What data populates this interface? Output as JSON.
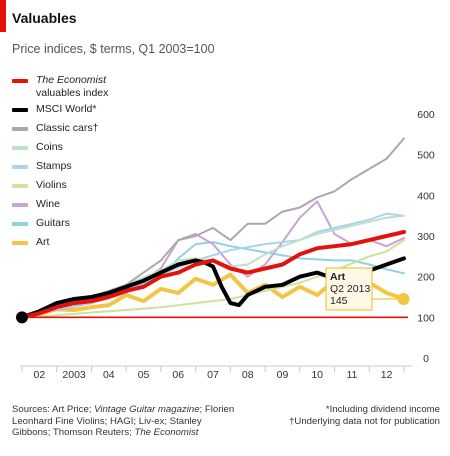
{
  "colors": {
    "accent": "#e3120b",
    "axis": "#c8c8c8",
    "baseline": "#e3120b",
    "annotation_fill": "#fdf9e6",
    "annotation_border": "#f4c542"
  },
  "header": {
    "title": "Valuables",
    "subtitle": "Price indices, $ terms, Q1 2003=100"
  },
  "footer": {
    "sources_prefix": "Sources: Art Price; ",
    "sources_italic": "Vintage Guitar magazine",
    "sources_mid": "; Florien Leonhard Fine Violins; HAGI; Liv-ex; Stanley Gibbons; Thomson Reuters; ",
    "sources_italic2": "The Economist",
    "footnote1": "*Including dividend income",
    "footnote2": "†Underlying data not for publication"
  },
  "chart_data": {
    "type": "line",
    "title": "Valuables",
    "subtitle": "Price indices, $ terms, Q1 2003=100",
    "xlabel": "",
    "ylabel": "",
    "x_tick_labels": [
      "02",
      "2003",
      "04",
      "05",
      "06",
      "07",
      "08",
      "09",
      "10",
      "11",
      "12"
    ],
    "xlim": [
      2002.0,
      2013.0
    ],
    "ylim": [
      0,
      600
    ],
    "y_ticks": [
      0,
      100,
      200,
      300,
      400,
      500,
      600
    ],
    "y_axis_position": "right",
    "grid": false,
    "baseline": 100,
    "legend_position": "top-left",
    "annotation": {
      "series": "Art",
      "x": 2013.0,
      "y": 145,
      "label": "Art",
      "period": "Q2 2013",
      "value": "145"
    },
    "series": [
      {
        "name": "Art",
        "color": "#f4c542",
        "width": 4,
        "x": [
          2002.0,
          2002.5,
          2003.0,
          2003.5,
          2004.0,
          2004.5,
          2005.0,
          2005.5,
          2006.0,
          2006.5,
          2007.0,
          2007.5,
          2008.0,
          2008.5,
          2009.0,
          2009.5,
          2010.0,
          2010.5,
          2011.0,
          2011.5,
          2012.0,
          2012.5,
          2013.0
        ],
        "y": [
          100,
          108,
          120,
          118,
          125,
          130,
          155,
          140,
          170,
          160,
          195,
          180,
          205,
          160,
          180,
          150,
          175,
          155,
          190,
          165,
          185,
          160,
          145
        ]
      },
      {
        "name": "Guitars",
        "color": "#8ed3e3",
        "width": 2,
        "x": [
          2002.0,
          2003.0,
          2004.0,
          2005.0,
          2006.0,
          2006.5,
          2007.0,
          2007.5,
          2008.0,
          2009.0,
          2010.0,
          2011.0,
          2011.5,
          2012.0,
          2012.5,
          2013.0
        ],
        "y": [
          100,
          120,
          140,
          165,
          200,
          245,
          280,
          285,
          275,
          260,
          245,
          240,
          240,
          230,
          218,
          208
        ]
      },
      {
        "name": "Wine",
        "color": "#c9a3d6",
        "width": 2,
        "x": [
          2002.0,
          2003.0,
          2004.0,
          2005.0,
          2006.0,
          2006.5,
          2007.0,
          2007.5,
          2008.0,
          2008.5,
          2009.0,
          2009.5,
          2010.0,
          2010.5,
          2011.0,
          2011.5,
          2012.0,
          2012.5,
          2013.0
        ],
        "y": [
          100,
          118,
          135,
          160,
          220,
          290,
          305,
          280,
          230,
          200,
          230,
          285,
          345,
          385,
          305,
          280,
          290,
          275,
          295
        ]
      },
      {
        "name": "Violins",
        "color": "#cde29a",
        "width": 2,
        "x": [
          2002.0,
          2003.0,
          2004.0,
          2005.0,
          2006.0,
          2007.0,
          2008.0,
          2009.0,
          2010.0,
          2011.0,
          2012.0,
          2012.5,
          2013.0
        ],
        "y": [
          100,
          105,
          112,
          118,
          125,
          135,
          145,
          165,
          185,
          215,
          250,
          262,
          290
        ]
      },
      {
        "name": "Stamps",
        "color": "#aed1ef",
        "width": 2,
        "x": [
          2002.0,
          2003.0,
          2004.0,
          2005.0,
          2006.0,
          2007.0,
          2008.0,
          2009.0,
          2010.0,
          2010.5,
          2011.0,
          2011.5,
          2012.0,
          2012.5,
          2013.0
        ],
        "y": [
          100,
          120,
          135,
          170,
          205,
          240,
          265,
          280,
          290,
          310,
          320,
          330,
          340,
          355,
          350
        ]
      },
      {
        "name": "Coins",
        "color": "#b9e3c6",
        "width": 2,
        "x": [
          2002.0,
          2003.0,
          2004.0,
          2005.0,
          2006.0,
          2006.5,
          2007.0,
          2007.5,
          2008.0,
          2008.5,
          2009.0,
          2009.5,
          2010.0,
          2010.5,
          2011.0,
          2011.5,
          2012.0,
          2012.5,
          2013.0
        ],
        "y": [
          100,
          125,
          150,
          180,
          215,
          240,
          245,
          240,
          225,
          230,
          255,
          275,
          290,
          305,
          315,
          325,
          335,
          345,
          350
        ]
      },
      {
        "name": "Classic cars†",
        "color": "#a9a9a9",
        "width": 2,
        "x": [
          2002.0,
          2002.5,
          2003.0,
          2003.5,
          2004.0,
          2004.5,
          2005.0,
          2005.5,
          2006.0,
          2006.5,
          2007.0,
          2007.5,
          2008.0,
          2008.5,
          2009.0,
          2009.5,
          2010.0,
          2010.5,
          2011.0,
          2011.5,
          2012.0,
          2012.5,
          2013.0
        ],
        "y": [
          100,
          115,
          130,
          135,
          150,
          165,
          180,
          210,
          240,
          290,
          300,
          320,
          290,
          330,
          330,
          360,
          370,
          395,
          410,
          440,
          465,
          490,
          540
        ]
      },
      {
        "name": "MSCI World*",
        "color": "#000000",
        "width": 4,
        "x": [
          2002.0,
          2002.5,
          2003.0,
          2003.5,
          2004.0,
          2004.5,
          2005.0,
          2005.5,
          2006.0,
          2006.5,
          2007.0,
          2007.25,
          2007.5,
          2007.75,
          2008.0,
          2008.25,
          2008.5,
          2009.0,
          2009.5,
          2010.0,
          2010.5,
          2011.0,
          2011.5,
          2012.0,
          2012.5,
          2013.0
        ],
        "y": [
          100,
          115,
          135,
          145,
          150,
          160,
          175,
          190,
          210,
          230,
          240,
          235,
          225,
          175,
          135,
          130,
          155,
          175,
          180,
          200,
          210,
          195,
          210,
          215,
          230,
          245
        ]
      },
      {
        "name": "The Economist valuables index",
        "color": "#e3120b",
        "width": 4,
        "x": [
          2002.0,
          2002.5,
          2003.0,
          2003.5,
          2004.0,
          2004.5,
          2005.0,
          2005.5,
          2006.0,
          2006.5,
          2007.0,
          2007.5,
          2008.0,
          2008.5,
          2009.0,
          2009.5,
          2010.0,
          2010.5,
          2011.0,
          2011.5,
          2012.0,
          2012.5,
          2013.0
        ],
        "y": [
          100,
          110,
          125,
          135,
          140,
          150,
          165,
          175,
          200,
          210,
          230,
          240,
          220,
          210,
          220,
          230,
          255,
          270,
          275,
          280,
          290,
          300,
          310
        ]
      }
    ],
    "legend": [
      {
        "label": "The Economist",
        "label2": "valuables index",
        "italic": true,
        "color": "#e3120b"
      },
      {
        "label": "MSCI World*",
        "color": "#000000"
      },
      {
        "label": "Classic cars†",
        "color": "#a9a9a9"
      },
      {
        "label": "Coins",
        "color": "#b9e3c6"
      },
      {
        "label": "Stamps",
        "color": "#aed1ef"
      },
      {
        "label": "Violins",
        "color": "#cde29a"
      },
      {
        "label": "Wine",
        "color": "#c9a3d6"
      },
      {
        "label": "Guitars",
        "color": "#8ed3e3"
      },
      {
        "label": "Art",
        "color": "#f4c542"
      }
    ]
  }
}
